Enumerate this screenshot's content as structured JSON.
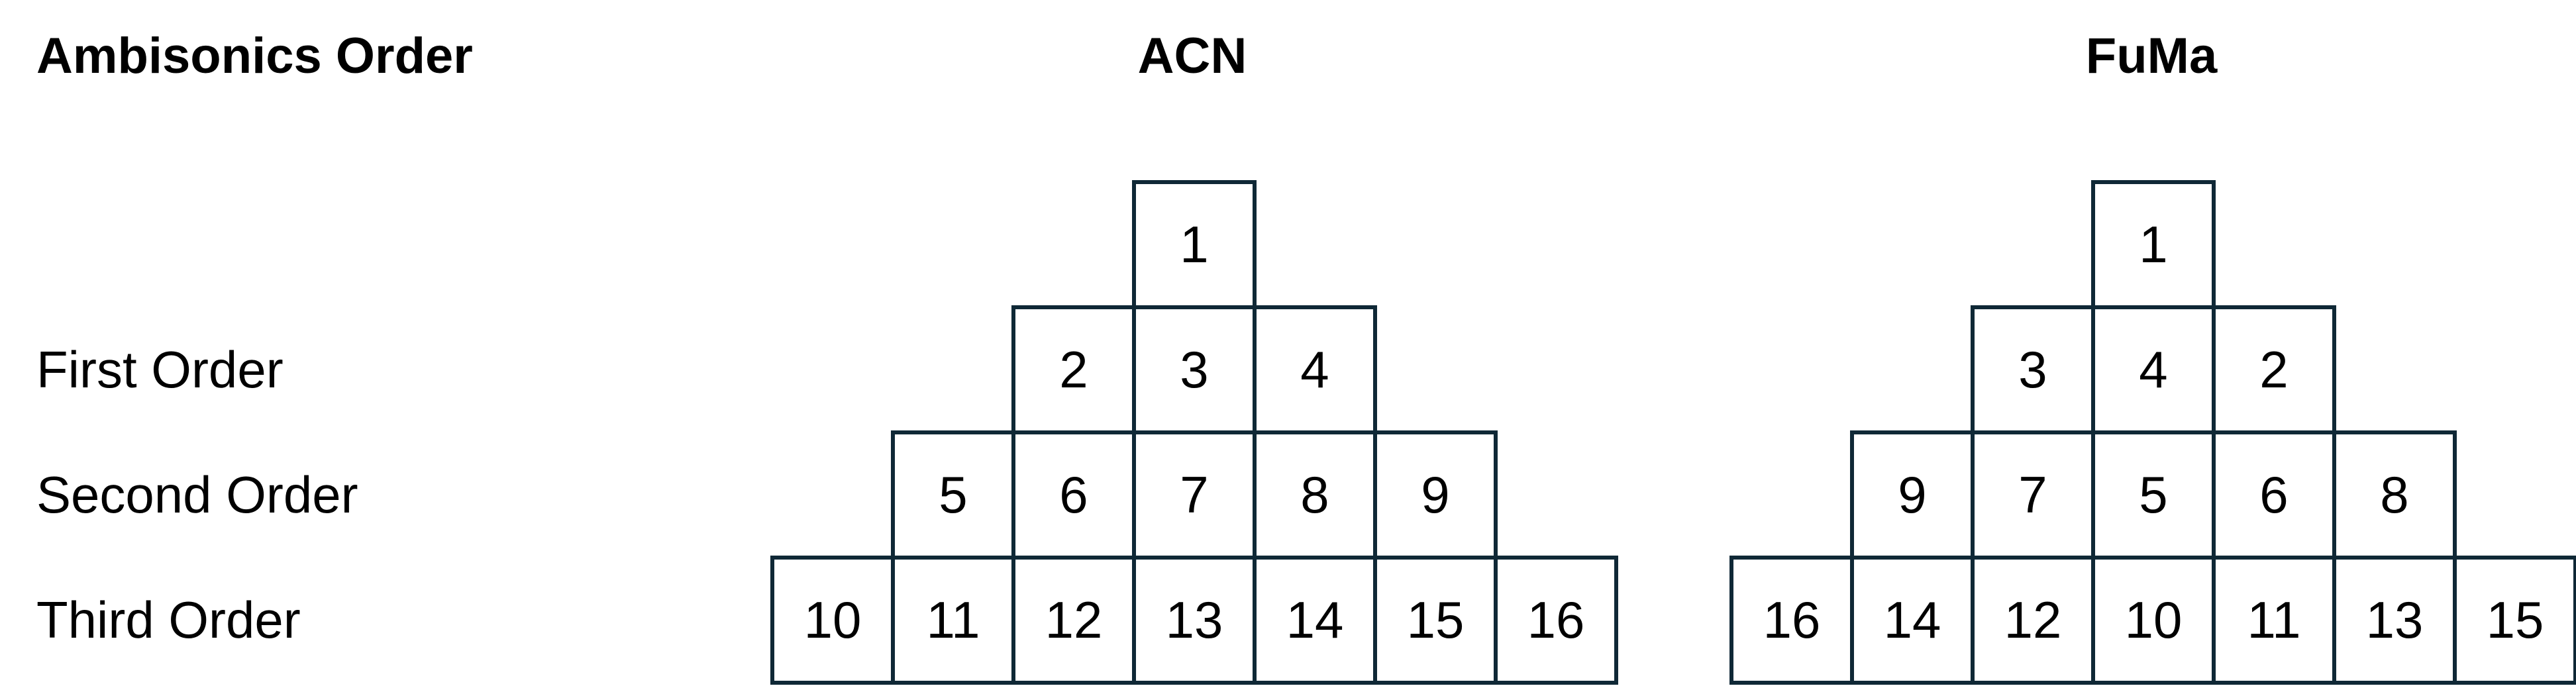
{
  "header": {
    "order_title": "Ambisonics Order",
    "acn_title": "ACN",
    "fuma_title": "FuMa"
  },
  "rows": [
    "First Order",
    "Second Order",
    "Third Order"
  ],
  "acn": [
    [
      "1"
    ],
    [
      "2",
      "3",
      "4"
    ],
    [
      "5",
      "6",
      "7",
      "8",
      "9"
    ],
    [
      "10",
      "11",
      "12",
      "13",
      "14",
      "15",
      "16"
    ]
  ],
  "fuma": [
    [
      "1"
    ],
    [
      "3",
      "4",
      "2"
    ],
    [
      "9",
      "7",
      "5",
      "6",
      "8"
    ],
    [
      "16",
      "14",
      "12",
      "10",
      "11",
      "13",
      "15"
    ]
  ],
  "colors": {
    "grid_line": "#0f2836"
  }
}
